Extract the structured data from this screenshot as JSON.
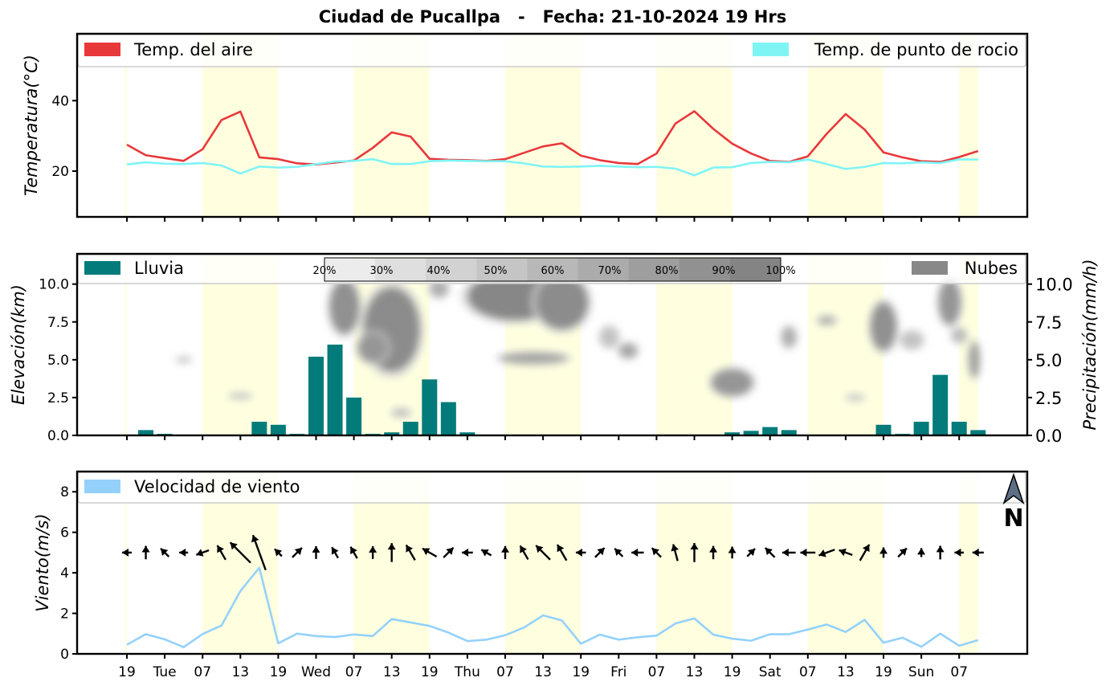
{
  "title": "Ciudad de Pucallpa   -   Fecha: 21-10-2024 19 Hrs",
  "colors": {
    "air": "#e8383a",
    "dew": "#7ff4f4",
    "rain": "#047b7b",
    "cloud": "#888888",
    "wind": "#94d1fa",
    "night_band": "#ffffe0",
    "north_arrow": "#5c6f86"
  },
  "x_ticks": [
    "19",
    "Tue",
    "07",
    "13",
    "19",
    "Wed",
    "07",
    "13",
    "19",
    "Thu",
    "07",
    "13",
    "19",
    "Fri",
    "07",
    "13",
    "19",
    "Sat",
    "07",
    "13",
    "19",
    "Sun",
    "07"
  ],
  "chart_data": [
    {
      "type": "line",
      "name": "temperatura",
      "ylabel": "Temperatura(°C)",
      "ylim": [
        7,
        59
      ],
      "yticks": [
        20,
        40
      ],
      "legend": [
        {
          "label": "Temp. del aire",
          "color": "#e8383a",
          "placement": "top-left"
        },
        {
          "label": "Temp. de punto de rocio",
          "color": "#7ff4f4",
          "placement": "top-right"
        }
      ],
      "series": [
        {
          "name": "Temp. del aire",
          "values": [
            27.5,
            24.5,
            23.7,
            22.9,
            26.2,
            34.5,
            36.9,
            23.9,
            23.4,
            22.2,
            21.9,
            22.4,
            23.0,
            26.6,
            31.0,
            29.8,
            23.5,
            23.2,
            23.1,
            22.9,
            23.4,
            25.2,
            27.0,
            27.9,
            24.4,
            23.1,
            22.3,
            22.0,
            25.0,
            33.5,
            37.0,
            32.0,
            27.8,
            25.0,
            22.9,
            22.6,
            24.2,
            30.6,
            36.2,
            31.8,
            25.3,
            23.9,
            22.8,
            22.6,
            24.0,
            25.7
          ]
        },
        {
          "name": "Temp. de punto de rocio",
          "values": [
            21.9,
            22.5,
            22.1,
            22.0,
            22.3,
            21.6,
            19.3,
            21.3,
            21.0,
            21.2,
            22.0,
            22.7,
            22.9,
            23.4,
            22.0,
            22.0,
            22.8,
            23.0,
            22.9,
            22.8,
            22.8,
            22.2,
            21.3,
            21.2,
            21.3,
            21.5,
            21.3,
            21.1,
            21.2,
            20.7,
            18.8,
            21.0,
            21.1,
            22.3,
            22.6,
            22.5,
            23.3,
            22.0,
            20.6,
            21.2,
            22.3,
            22.2,
            22.5,
            22.3,
            23.3,
            23.3
          ]
        }
      ]
    },
    {
      "type": "bar",
      "name": "precipitacion",
      "ylabel": "Elevación(km)",
      "ylabel_right": "Precipitación(mm/h)",
      "ylim": [
        0,
        12
      ],
      "yticks_left": [
        "0.0",
        "2.5",
        "5.0",
        "7.5",
        "10.0"
      ],
      "yticks_right": [
        "0.0",
        "2.5",
        "5.0",
        "7.5",
        "10.0"
      ],
      "legend": [
        {
          "label": "Lluvia",
          "color": "#047b7b",
          "placement": "top-left"
        },
        {
          "label": "Nubes",
          "color": "#888888",
          "placement": "top-right"
        }
      ],
      "colorbar": {
        "labels": [
          "20%",
          "30%",
          "40%",
          "50%",
          "60%",
          "70%",
          "80%",
          "90%",
          "100%"
        ]
      },
      "values": [
        0.0,
        0.35,
        0.1,
        0.02,
        0.05,
        0.05,
        0.05,
        0.9,
        0.7,
        0.1,
        5.2,
        6.0,
        2.5,
        0.1,
        0.2,
        0.9,
        3.7,
        2.2,
        0.2,
        0,
        0,
        0,
        0,
        0,
        0,
        0,
        0,
        0,
        0,
        0,
        0,
        0,
        0.2,
        0.3,
        0.55,
        0.35,
        0.05,
        0.05,
        0.05,
        0.05,
        0.7,
        0.1,
        0.9,
        4.0,
        0.9,
        0.35
      ],
      "clouds": [
        {
          "x": 14.0,
          "y": 7.0,
          "rx": 1.5,
          "ry": 2.8,
          "level": 0.95
        },
        {
          "x": 11.5,
          "y": 8.5,
          "rx": 0.8,
          "ry": 1.8,
          "level": 0.9
        },
        {
          "x": 13.0,
          "y": 5.8,
          "rx": 0.8,
          "ry": 1.0,
          "level": 0.85
        },
        {
          "x": 16.5,
          "y": 9.7,
          "rx": 0.5,
          "ry": 0.6,
          "level": 0.6
        },
        {
          "x": 20.5,
          "y": 9.2,
          "rx": 2.5,
          "ry": 1.6,
          "level": 1.0
        },
        {
          "x": 23.0,
          "y": 8.8,
          "rx": 1.4,
          "ry": 1.8,
          "level": 0.95
        },
        {
          "x": 21.5,
          "y": 5.1,
          "rx": 1.8,
          "ry": 0.4,
          "level": 0.7
        },
        {
          "x": 25.5,
          "y": 6.5,
          "rx": 0.5,
          "ry": 0.7,
          "level": 0.4
        },
        {
          "x": 26.5,
          "y": 5.6,
          "rx": 0.5,
          "ry": 0.5,
          "level": 0.7
        },
        {
          "x": 32.0,
          "y": 3.5,
          "rx": 1.1,
          "ry": 0.9,
          "level": 0.85
        },
        {
          "x": 35.0,
          "y": 6.5,
          "rx": 0.4,
          "ry": 0.7,
          "level": 0.6
        },
        {
          "x": 37.0,
          "y": 7.6,
          "rx": 0.5,
          "ry": 0.3,
          "level": 0.6
        },
        {
          "x": 40.0,
          "y": 7.2,
          "rx": 0.7,
          "ry": 1.6,
          "level": 0.9
        },
        {
          "x": 41.5,
          "y": 6.3,
          "rx": 0.6,
          "ry": 0.6,
          "level": 0.4
        },
        {
          "x": 43.5,
          "y": 8.8,
          "rx": 0.6,
          "ry": 1.5,
          "level": 0.85
        },
        {
          "x": 44.8,
          "y": 5.0,
          "rx": 0.3,
          "ry": 1.2,
          "level": 0.75
        },
        {
          "x": 44.0,
          "y": 6.6,
          "rx": 0.4,
          "ry": 0.5,
          "level": 0.5
        },
        {
          "x": 3.0,
          "y": 5.0,
          "rx": 0.4,
          "ry": 0.2,
          "level": 0.4
        },
        {
          "x": 6.0,
          "y": 2.6,
          "rx": 0.6,
          "ry": 0.2,
          "level": 0.4
        },
        {
          "x": 38.5,
          "y": 2.5,
          "rx": 0.5,
          "ry": 0.2,
          "level": 0.4
        },
        {
          "x": 14.5,
          "y": 1.5,
          "rx": 0.5,
          "ry": 0.3,
          "level": 0.4
        }
      ]
    },
    {
      "type": "line",
      "name": "viento",
      "ylabel": "Viento(m/s)",
      "ylim": [
        0,
        9
      ],
      "yticks": [
        "0",
        "2",
        "4",
        "6",
        "8"
      ],
      "legend": [
        {
          "label": "Velocidad de viento",
          "color": "#94d1fa",
          "placement": "top-left"
        }
      ],
      "north_label": "N",
      "values": [
        0.45,
        0.97,
        0.72,
        0.33,
        0.98,
        1.4,
        3.1,
        4.25,
        0.52,
        1.0,
        0.88,
        0.83,
        0.96,
        0.88,
        1.72,
        1.55,
        1.38,
        1.05,
        0.63,
        0.7,
        0.92,
        1.3,
        1.9,
        1.65,
        0.5,
        0.95,
        0.7,
        0.82,
        0.9,
        1.5,
        1.75,
        0.95,
        0.75,
        0.65,
        0.97,
        0.97,
        1.2,
        1.45,
        1.08,
        1.68,
        0.55,
        0.8,
        0.35,
        1.0,
        0.4,
        0.68
      ],
      "wind_dir_deg": [
        270,
        0,
        315,
        270,
        250,
        330,
        315,
        340,
        315,
        45,
        0,
        330,
        330,
        0,
        0,
        330,
        300,
        45,
        270,
        300,
        0,
        330,
        315,
        330,
        270,
        45,
        315,
        270,
        315,
        345,
        0,
        0,
        0,
        45,
        315,
        270,
        270,
        250,
        290,
        30,
        0,
        45,
        0,
        0,
        270,
        270
      ]
    }
  ]
}
